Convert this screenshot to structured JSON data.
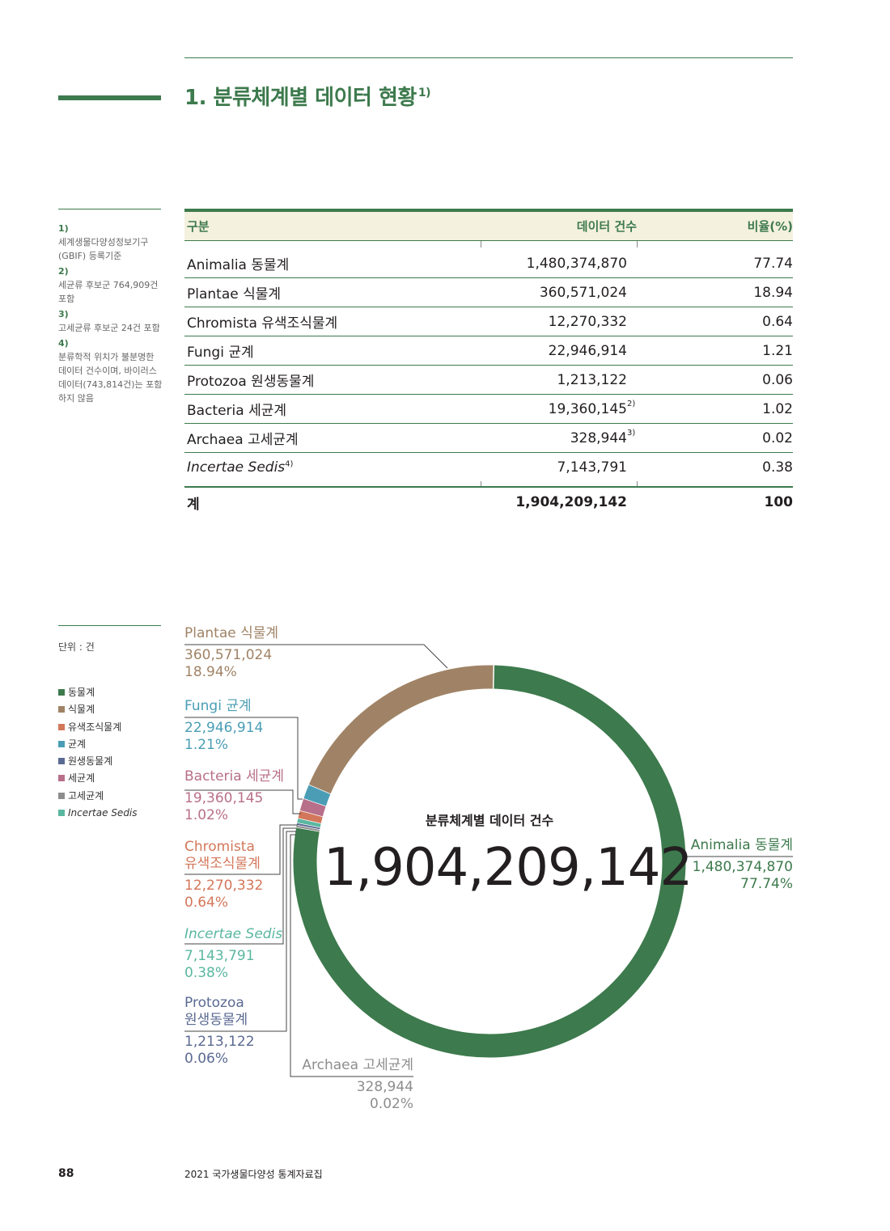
{
  "page": {
    "title": "1. 분류체계별 데이터 현황",
    "title_note": "1)",
    "page_number": "88",
    "publication": "2021 국가생물다양성 통계자료집"
  },
  "footnotes": [
    {
      "num": "1)",
      "text": "세계생물다양성정보기구(GBIF) 등록기준"
    },
    {
      "num": "2)",
      "text": "세균류 후보군 764,909건 포함"
    },
    {
      "num": "3)",
      "text": "고세균류 후보군 24건 포함"
    },
    {
      "num": "4)",
      "text": "분류학적 위치가 불분명한 데이터 건수이며, 바이러스 데이터(743,814건)는 포함하지 않음"
    }
  ],
  "table": {
    "headers": [
      "구분",
      "데이터 건수",
      "비율(%)"
    ],
    "rows": [
      {
        "name": "Animalia 동물계",
        "count": "1,480,374,870",
        "note": "",
        "ratio": "77.74"
      },
      {
        "name": "Plantae 식물계",
        "count": "360,571,024",
        "note": "",
        "ratio": "18.94"
      },
      {
        "name": "Chromista 유색조식물계",
        "count": "12,270,332",
        "note": "",
        "ratio": "0.64"
      },
      {
        "name": "Fungi 균계",
        "count": "22,946,914",
        "note": "",
        "ratio": "1.21"
      },
      {
        "name": "Protozoa 원생동물계",
        "count": "1,213,122",
        "note": "",
        "ratio": "0.06"
      },
      {
        "name": "Bacteria 세균계",
        "count": "19,360,145",
        "note": "2)",
        "ratio": "1.02"
      },
      {
        "name": "Archaea 고세균계",
        "count": "328,944",
        "note": "3)",
        "ratio": "0.02"
      },
      {
        "name": "Incertae Sedis",
        "name_note": "4)",
        "count": "7,143,791",
        "note": "",
        "ratio": "0.38"
      }
    ],
    "total": {
      "name": "계",
      "count": "1,904,209,142",
      "ratio": "100"
    }
  },
  "chart_meta": {
    "unit": "단위 : 건",
    "legend": [
      {
        "label": "동물계",
        "color": "#3d7a4d"
      },
      {
        "label": "식물계",
        "color": "#a08366"
      },
      {
        "label": "유색조식물계",
        "color": "#d3775a"
      },
      {
        "label": "균계",
        "color": "#4a9db5"
      },
      {
        "label": "원생동물계",
        "color": "#5b6a93"
      },
      {
        "label": "세균계",
        "color": "#b86f89"
      },
      {
        "label": "고세균계",
        "color": "#8d8d8d"
      },
      {
        "label": "Incertae Sedis",
        "color": "#5ab7a0"
      }
    ],
    "caption": "분류체계별 데이터 건수",
    "total": "1,904,209,142"
  },
  "chart_data": {
    "type": "pie",
    "categories": [
      "Animalia 동물계",
      "Plantae 식물계",
      "Fungi 균계",
      "Bacteria 세균계",
      "Chromista 유색조식물계",
      "Incertae Sedis",
      "Protozoa 원생동물계",
      "Archaea 고세균계"
    ],
    "values": [
      1480374870,
      360571024,
      22946914,
      19360145,
      12270332,
      7143791,
      1213122,
      328944
    ],
    "labels": [
      {
        "name": "Animalia 동물계",
        "value": "1,480,374,870",
        "pct": "77.74%",
        "color": "#3d7a4d"
      },
      {
        "name": "Plantae 식물계",
        "value": "360,571,024",
        "pct": "18.94%",
        "color": "#a08366"
      },
      {
        "name": "Fungi 균계",
        "value": "22,946,914",
        "pct": "1.21%",
        "color": "#4a9db5"
      },
      {
        "name": "Bacteria 세균계",
        "value": "19,360,145",
        "pct": "1.02%",
        "color": "#b86f89"
      },
      {
        "name": "Chromista",
        "name2": "유색조식물계",
        "value": "12,270,332",
        "pct": "0.64%",
        "color": "#d3775a"
      },
      {
        "name": "Incertae Sedis",
        "value": "7,143,791",
        "pct": "0.38%",
        "color": "#5ab7a0"
      },
      {
        "name": "Protozoa",
        "name2": "원생동물계",
        "value": "1,213,122",
        "pct": "0.06%",
        "color": "#5b6a93"
      },
      {
        "name": "Archaea 고세균계",
        "value": "328,944",
        "pct": "0.02%",
        "color": "#8d8d8d"
      }
    ],
    "legend_placement": "left",
    "style": "donut"
  }
}
